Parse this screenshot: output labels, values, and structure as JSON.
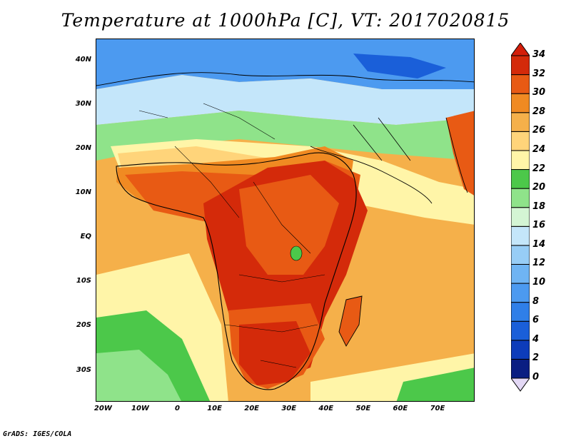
{
  "title": "Temperature at 1000hPa [C], VT: 2017020815",
  "credit": "GrADS: IGES/COLA",
  "map": {
    "lon_range": [
      -22,
      80
    ],
    "lat_range": [
      -37,
      45
    ],
    "lon_ticks": [
      {
        "value": -20,
        "label": "20W"
      },
      {
        "value": -10,
        "label": "10W"
      },
      {
        "value": 0,
        "label": "0"
      },
      {
        "value": 10,
        "label": "10E"
      },
      {
        "value": 20,
        "label": "20E"
      },
      {
        "value": 30,
        "label": "30E"
      },
      {
        "value": 40,
        "label": "40E"
      },
      {
        "value": 50,
        "label": "50E"
      },
      {
        "value": 60,
        "label": "60E"
      },
      {
        "value": 70,
        "label": "70E"
      }
    ],
    "lat_ticks": [
      {
        "value": 40,
        "label": "40N"
      },
      {
        "value": 30,
        "label": "30N"
      },
      {
        "value": 20,
        "label": "20N"
      },
      {
        "value": 10,
        "label": "10N"
      },
      {
        "value": 0,
        "label": "EQ"
      },
      {
        "value": -10,
        "label": "10S"
      },
      {
        "value": -20,
        "label": "20S"
      },
      {
        "value": -30,
        "label": "30S"
      }
    ]
  },
  "colorbar": {
    "levels": [
      0,
      2,
      4,
      6,
      8,
      10,
      12,
      14,
      16,
      18,
      20,
      22,
      24,
      26,
      28,
      30,
      32,
      34
    ],
    "labels": [
      "0",
      "2",
      "4",
      "6",
      "8",
      "10",
      "12",
      "14",
      "16",
      "18",
      "20",
      "22",
      "24",
      "26",
      "28",
      "30",
      "32",
      "34"
    ],
    "colors": [
      "#0a1e82",
      "#0d3cba",
      "#1a5fd9",
      "#2f7fe8",
      "#4c9af0",
      "#6fb4f3",
      "#97cdf6",
      "#c4e6fa",
      "#d4f5d4",
      "#8fe38a",
      "#4cc84a",
      "#fff5a8",
      "#ffd47a",
      "#f5b04a",
      "#f08a22",
      "#e85a14",
      "#d42a0a"
    ],
    "under_color": "#e3d8f5",
    "over_color": "#d41e0a"
  }
}
